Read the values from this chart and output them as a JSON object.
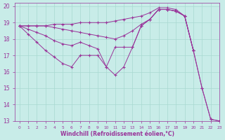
{
  "xlabel": "Windchill (Refroidissement éolien,°C)",
  "xlim": [
    -0.5,
    23
  ],
  "ylim": [
    13,
    20.2
  ],
  "yticks": [
    13,
    14,
    15,
    16,
    17,
    18,
    19,
    20
  ],
  "xticks": [
    0,
    1,
    2,
    3,
    4,
    5,
    6,
    7,
    8,
    9,
    10,
    11,
    12,
    13,
    14,
    15,
    16,
    17,
    18,
    19,
    20,
    21,
    22,
    23
  ],
  "bg_color": "#c8ece8",
  "line_color": "#993399",
  "grid_color": "#a8d8d0",
  "series": [
    {
      "x": [
        0,
        1,
        2,
        3,
        4,
        5,
        6,
        7,
        8,
        9,
        10,
        11,
        12,
        13,
        14,
        15,
        16,
        17,
        18,
        19,
        20
      ],
      "y": [
        18.8,
        18.8,
        18.8,
        18.8,
        18.9,
        18.9,
        18.9,
        19.0,
        19.0,
        19.0,
        19.0,
        19.1,
        19.2,
        19.3,
        19.4,
        19.6,
        19.9,
        19.9,
        19.8,
        19.4,
        17.3
      ]
    },
    {
      "x": [
        0,
        1,
        2,
        3,
        4,
        5,
        6,
        7,
        8,
        9,
        10,
        11,
        12,
        13,
        14,
        15,
        16,
        17,
        18,
        19,
        20,
        21,
        22,
        23
      ],
      "y": [
        18.8,
        18.8,
        18.8,
        18.8,
        18.7,
        18.6,
        18.5,
        18.4,
        18.3,
        18.2,
        18.1,
        18.0,
        18.2,
        18.5,
        18.9,
        19.2,
        19.8,
        19.8,
        19.7,
        19.4,
        17.3,
        15.0,
        13.1,
        13.0
      ]
    },
    {
      "x": [
        0,
        1,
        2,
        3,
        4,
        5,
        6,
        7,
        8,
        9,
        10,
        11,
        12,
        13,
        14,
        15,
        16,
        17,
        18,
        19,
        20
      ],
      "y": [
        18.8,
        18.6,
        18.4,
        18.2,
        17.9,
        17.7,
        17.6,
        17.8,
        17.6,
        17.4,
        16.3,
        17.5,
        17.5,
        17.5,
        18.8,
        19.2,
        19.8,
        19.8,
        19.7,
        19.4,
        17.3
      ]
    },
    {
      "x": [
        0,
        1,
        2,
        3,
        4,
        5,
        6,
        7,
        8,
        9,
        10,
        11,
        12,
        13,
        14,
        15,
        16,
        17,
        18,
        19,
        20,
        21,
        22,
        23
      ],
      "y": [
        18.8,
        18.3,
        17.8,
        17.3,
        16.9,
        16.5,
        16.3,
        17.0,
        17.0,
        17.0,
        16.3,
        15.8,
        16.3,
        17.5,
        18.8,
        19.2,
        19.8,
        19.8,
        19.7,
        19.4,
        17.3,
        15.0,
        13.1,
        13.0
      ]
    }
  ]
}
